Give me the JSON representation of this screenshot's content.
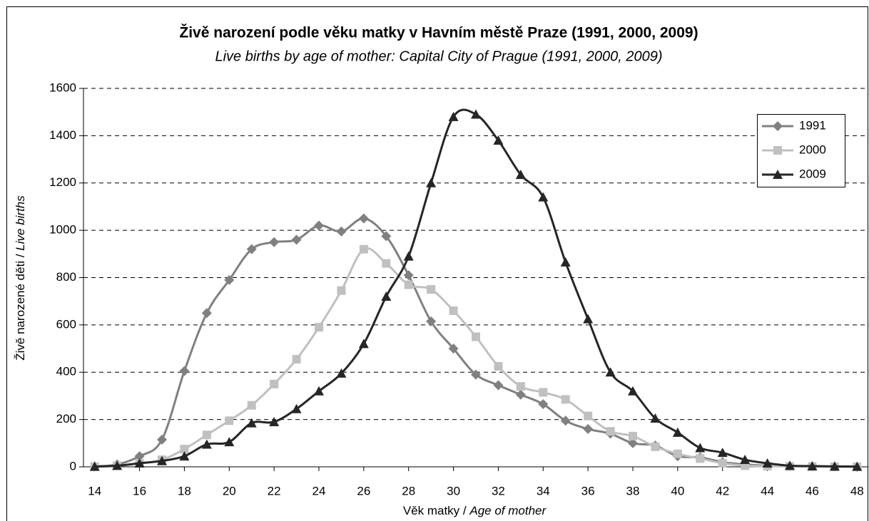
{
  "chart_data": {
    "type": "line",
    "title": "Živě narození podle věku matky v Havním městě Praze (1991, 2000, 2009)",
    "subtitle": "Live births by age of mother: Capital City of Prague (1991, 2000, 2009)",
    "ylabel": {
      "cs": "Živě narozené děti /",
      "en": "Live births"
    },
    "xlabel": {
      "cs": "Věk matky /",
      "en": "Age of mother"
    },
    "x": [
      14,
      15,
      16,
      17,
      18,
      19,
      20,
      21,
      22,
      23,
      24,
      25,
      26,
      27,
      28,
      29,
      30,
      31,
      32,
      33,
      34,
      35,
      36,
      37,
      38,
      39,
      40,
      41,
      42,
      43,
      44,
      45,
      46,
      47,
      48
    ],
    "xlim": [
      13.5,
      48.5
    ],
    "xticks": [
      14,
      16,
      18,
      20,
      22,
      24,
      26,
      28,
      30,
      32,
      34,
      36,
      38,
      40,
      42,
      44,
      46,
      48
    ],
    "ylim": [
      0,
      1600
    ],
    "yticks": [
      0,
      200,
      400,
      600,
      800,
      1000,
      1200,
      1400,
      1600
    ],
    "grid": true,
    "smooth": true,
    "legend": "upper right",
    "series": [
      {
        "name": "1991",
        "color": "#808080",
        "marker": "diamond",
        "values": [
          2,
          10,
          45,
          115,
          405,
          650,
          790,
          920,
          950,
          960,
          1020,
          995,
          1050,
          975,
          810,
          615,
          500,
          390,
          345,
          305,
          265,
          195,
          160,
          140,
          100,
          90,
          45,
          40,
          20,
          10,
          5,
          3,
          2,
          1,
          0
        ]
      },
      {
        "name": "2000",
        "color": "#c0c0c0",
        "marker": "square",
        "values": [
          1,
          5,
          15,
          30,
          75,
          135,
          195,
          260,
          350,
          455,
          590,
          745,
          920,
          860,
          770,
          750,
          660,
          550,
          425,
          340,
          315,
          285,
          215,
          150,
          130,
          85,
          55,
          35,
          15,
          5,
          3,
          2,
          1,
          0,
          0
        ]
      },
      {
        "name": "2009",
        "color": "#262626",
        "marker": "triangle",
        "values": [
          1,
          5,
          15,
          25,
          45,
          95,
          105,
          185,
          190,
          245,
          320,
          395,
          520,
          720,
          890,
          1200,
          1480,
          1490,
          1380,
          1235,
          1140,
          865,
          625,
          400,
          320,
          205,
          145,
          80,
          60,
          30,
          15,
          5,
          3,
          2,
          1
        ]
      }
    ]
  }
}
